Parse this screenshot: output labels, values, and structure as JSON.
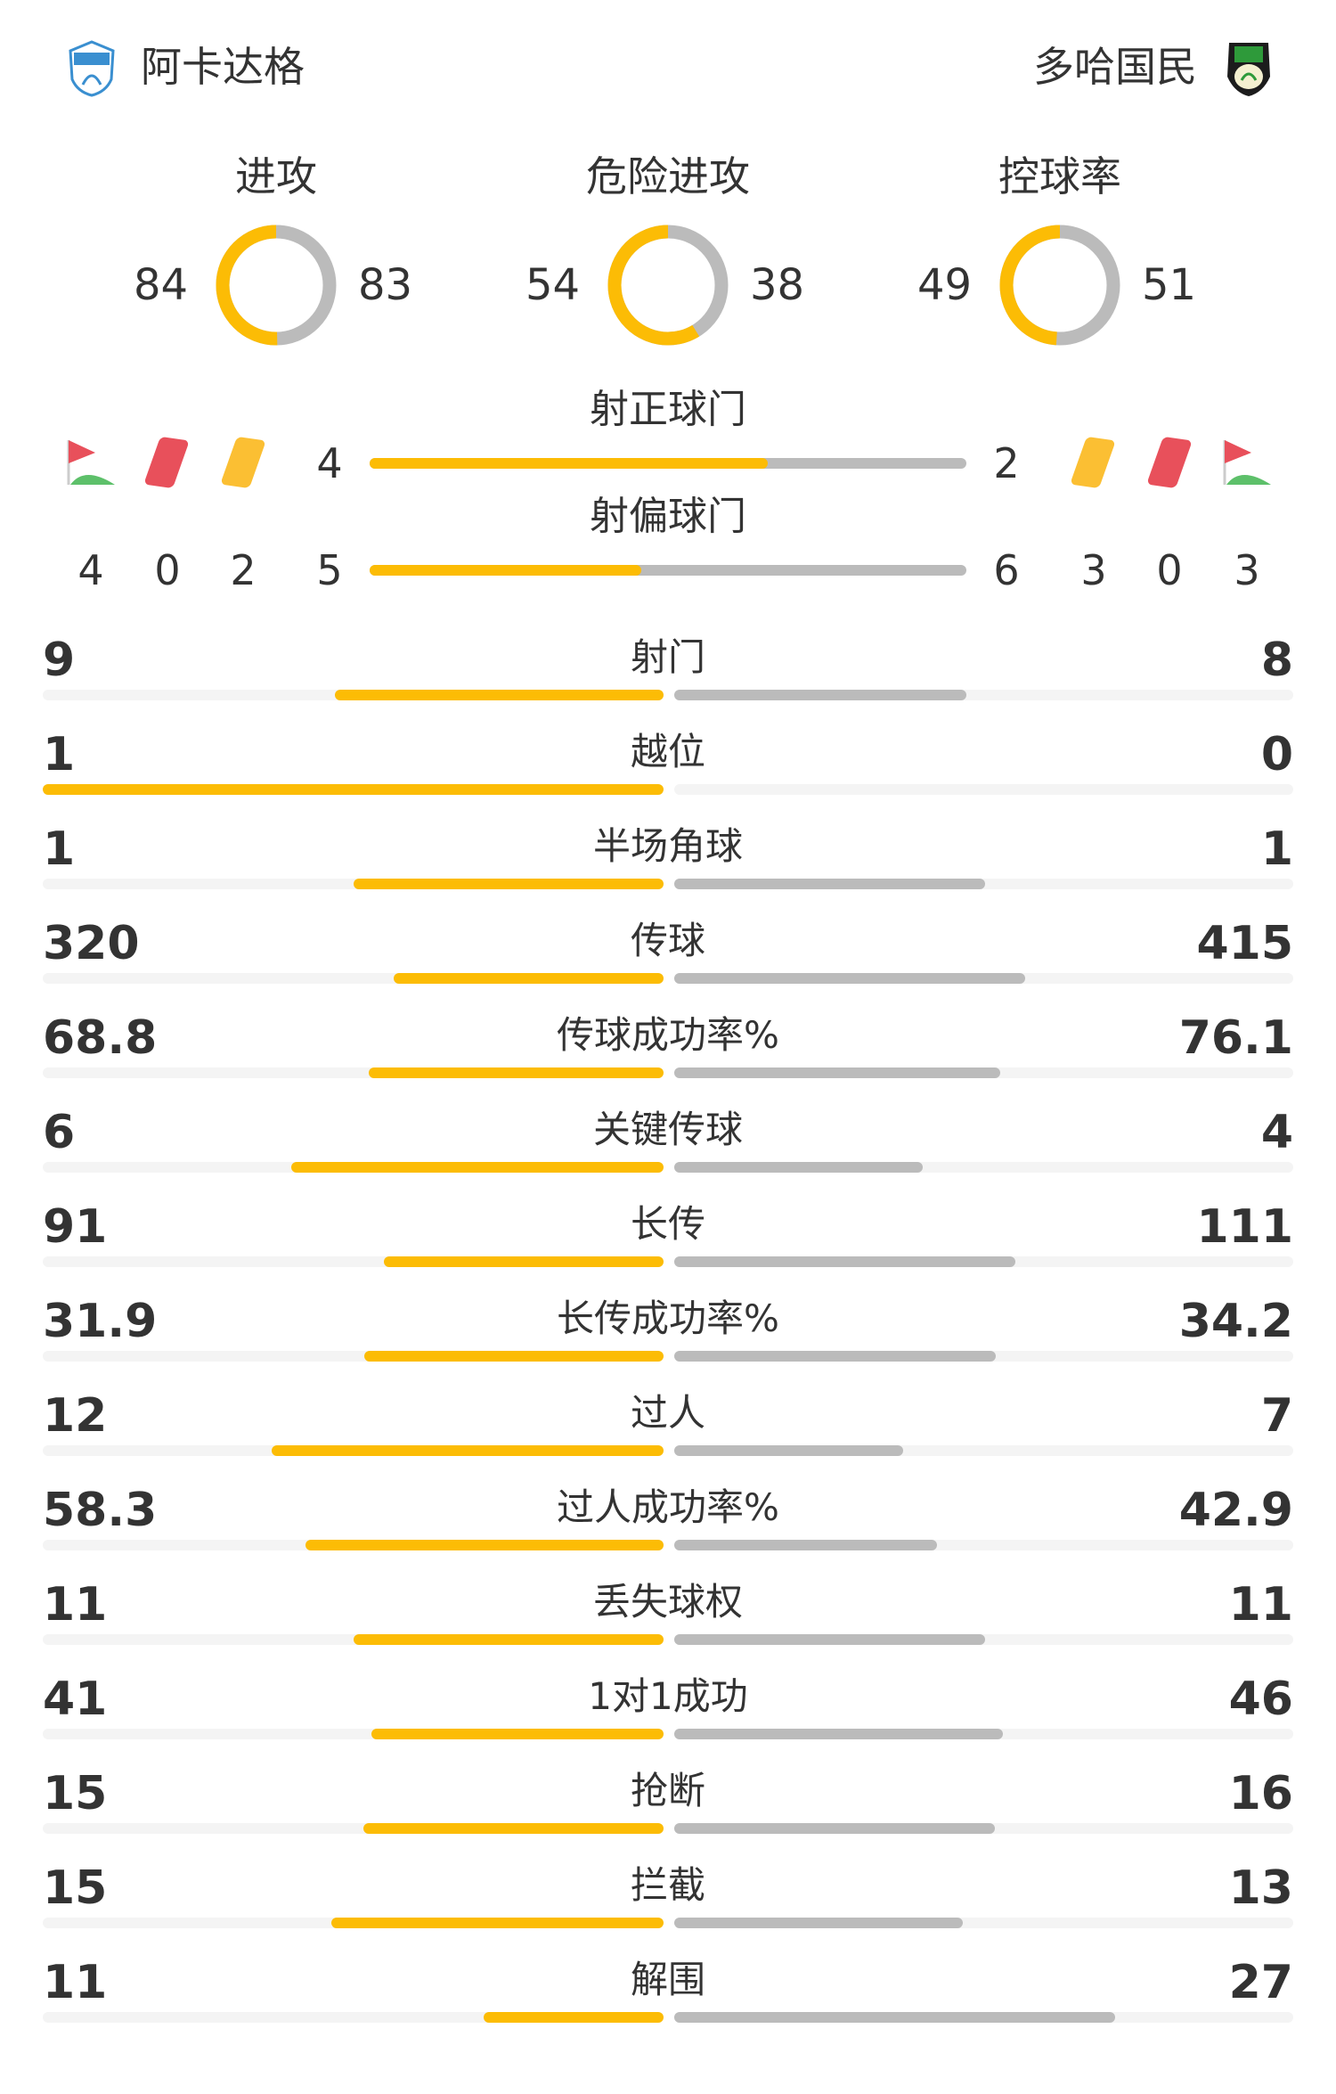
{
  "home": {
    "name": "阿卡达格",
    "logo": "blue-shield-crest"
  },
  "away": {
    "name": "多哈国民",
    "logo": "green-shield-crest"
  },
  "colors": {
    "home": "#FCBC05",
    "away": "#BBBBBB",
    "track": "#F4F4F4"
  },
  "circles": [
    {
      "label": "进攻",
      "home": 84,
      "away": 83
    },
    {
      "label": "危险进攻",
      "home": 54,
      "away": 38
    },
    {
      "label": "控球率",
      "home": 49,
      "away": 51
    }
  ],
  "shots_on": {
    "label": "射正球门",
    "home": 4,
    "away": 2
  },
  "shots_off": {
    "label": "射偏球门",
    "home": 5,
    "away": 6
  },
  "events": {
    "home": {
      "corners": 4,
      "red": 0,
      "yellow": 2
    },
    "away": {
      "yellow": 3,
      "red": 0,
      "corners": 3
    }
  },
  "stats": [
    {
      "label": "射门",
      "home": "9",
      "away": "8"
    },
    {
      "label": "越位",
      "home": "1",
      "away": "0"
    },
    {
      "label": "半场角球",
      "home": "1",
      "away": "1"
    },
    {
      "label": "传球",
      "home": "320",
      "away": "415"
    },
    {
      "label": "传球成功率%",
      "home": "68.8",
      "away": "76.1"
    },
    {
      "label": "关键传球",
      "home": "6",
      "away": "4"
    },
    {
      "label": "长传",
      "home": "91",
      "away": "111"
    },
    {
      "label": "长传成功率%",
      "home": "31.9",
      "away": "34.2"
    },
    {
      "label": "过人",
      "home": "12",
      "away": "7"
    },
    {
      "label": "过人成功率%",
      "home": "58.3",
      "away": "42.9"
    },
    {
      "label": "丢失球权",
      "home": "11",
      "away": "11"
    },
    {
      "label": "1对1成功",
      "home": "41",
      "away": "46"
    },
    {
      "label": "抢断",
      "home": "15",
      "away": "16"
    },
    {
      "label": "拦截",
      "home": "15",
      "away": "13"
    },
    {
      "label": "解围",
      "home": "11",
      "away": "27"
    }
  ]
}
